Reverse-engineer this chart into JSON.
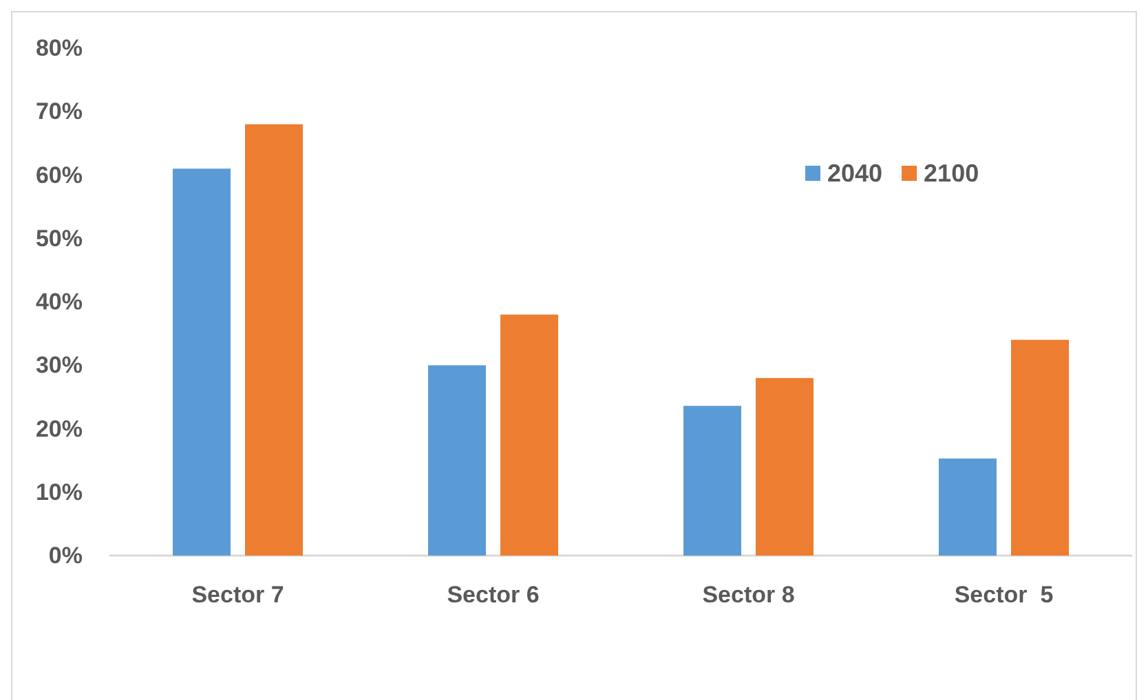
{
  "chart_data": {
    "type": "bar",
    "categories": [
      "Sector 7",
      "Sector 6",
      "Sector 8",
      "Sector  5"
    ],
    "series": [
      {
        "name": "2040",
        "color": "#5b9bd5",
        "values": [
          61,
          30,
          23.6,
          15.3
        ]
      },
      {
        "name": "2100",
        "color": "#ed7d31",
        "values": [
          68,
          38,
          28,
          34
        ]
      }
    ],
    "ylim": [
      0,
      80
    ],
    "yticks": [
      {
        "value": 0,
        "label": "0%"
      },
      {
        "value": 10,
        "label": "10%"
      },
      {
        "value": 20,
        "label": "20%"
      },
      {
        "value": 30,
        "label": "30%"
      },
      {
        "value": 40,
        "label": "40%"
      },
      {
        "value": 50,
        "label": "50%"
      },
      {
        "value": 60,
        "label": "60%"
      },
      {
        "value": 70,
        "label": "70%"
      },
      {
        "value": 80,
        "label": "80%"
      }
    ],
    "grid": false,
    "legend": "top right"
  }
}
